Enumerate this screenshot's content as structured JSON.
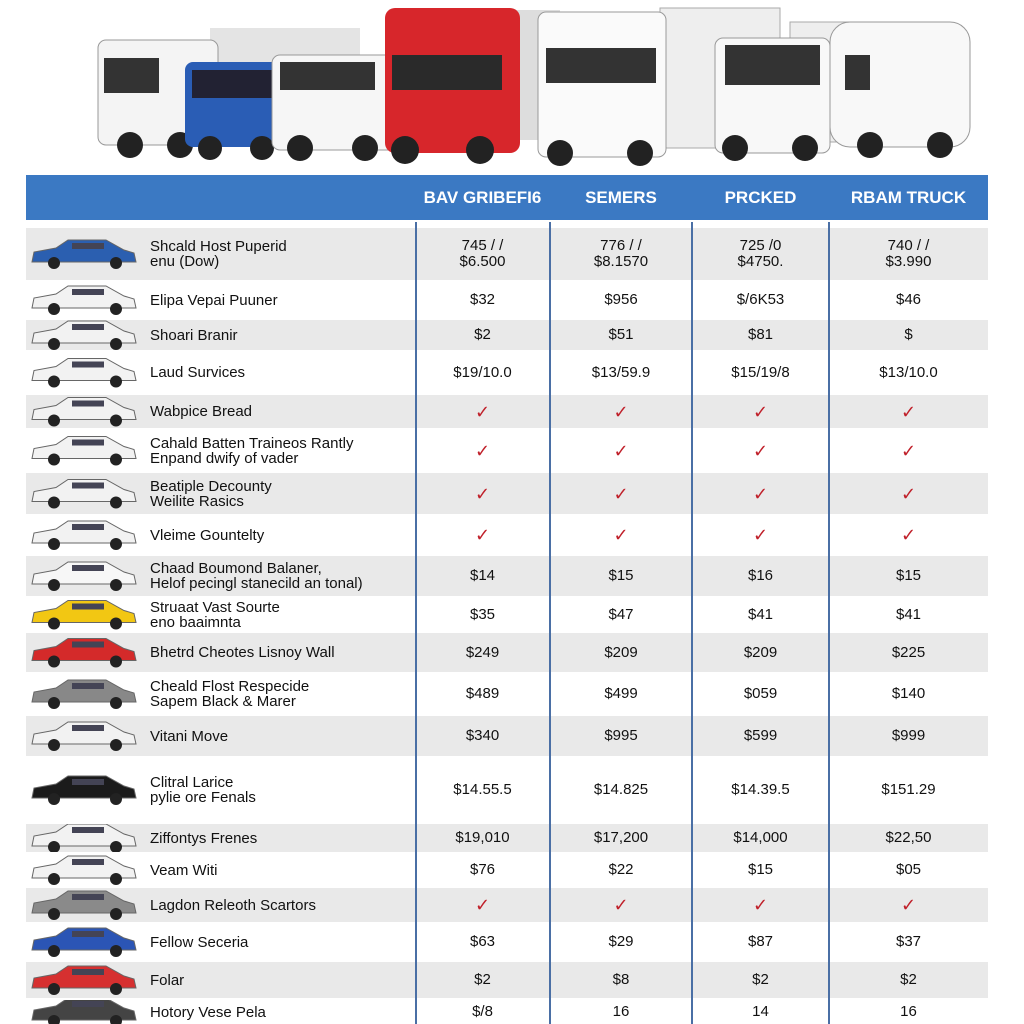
{
  "header": {
    "columns": [
      "BAV GRIBEFI6",
      "SEMERS",
      "PRCKED",
      "RBAM TRUCK"
    ]
  },
  "table": {
    "rows": [
      {
        "label": [
          "Shcald Host Puperid",
          "enu (Dow)"
        ],
        "cells": [
          [
            "745 / /",
            "$6.500"
          ],
          [
            "776 / /",
            "$8.1570"
          ],
          [
            "725 /0",
            "$4750."
          ],
          [
            "740 / /",
            "$3.990"
          ]
        ]
      },
      {
        "label": "Elipa Vepai Puuner",
        "cells": [
          "$32",
          "$956",
          "$/6K53",
          "$46"
        ]
      },
      {
        "label": "Shoari Branir",
        "cells": [
          "$2",
          "$51",
          "$81",
          "$"
        ]
      },
      {
        "label": "Laud Survices",
        "cells": [
          "$19/10.0",
          "$13/59.9",
          "$15/19/8",
          "$13/10.0"
        ]
      },
      {
        "label": "Wabpice Bread",
        "cells": [
          "✓",
          "✓",
          "✓",
          "✓"
        ]
      },
      {
        "label": [
          "Cahald Batten Traineos Rantly",
          "Enpand dwify of vader"
        ],
        "cells": [
          "✓",
          "✓",
          "✓",
          "✓"
        ]
      },
      {
        "label": [
          "Beatiple Decounty",
          "Weilite Rasics"
        ],
        "cells": [
          "✓",
          "✓",
          "✓",
          "✓"
        ]
      },
      {
        "label": "Vleime Gountelty",
        "cells": [
          "✓",
          "✓",
          "✓",
          "✓"
        ]
      },
      {
        "label": [
          "Chaad Boumond Balaner,",
          "Helof pecingl stanecild an tonal)"
        ],
        "cells": [
          "$14",
          "$15",
          "$16",
          "$15"
        ]
      },
      {
        "label": [
          "Struaat Vast Sourte",
          "eno baaimnta"
        ],
        "cells": [
          "$35",
          "$47",
          "$41",
          "$41"
        ]
      },
      {
        "label": "Bhetrd Cheotes Lisnoy Wall",
        "cells": [
          "$249",
          "$209",
          "$209",
          "$225"
        ]
      },
      {
        "label": [
          "Cheald Flost Respecide",
          "Sapem Black & Marer"
        ],
        "cells": [
          "$489",
          "$499",
          "$059",
          "$140"
        ]
      },
      {
        "label": "Vitani Move",
        "cells": [
          "$340",
          "$995",
          "$599",
          "$999"
        ]
      },
      {
        "label": [
          "Clitral Larice",
          "pylie ore Fenals"
        ],
        "cells": [
          "$14.55.5",
          "$14.825",
          "$14.39.5",
          "$151.29"
        ]
      },
      {
        "label": "Ziffontys Frenes",
        "cells": [
          "$19,010",
          "$17,200",
          "$14,000",
          "$22,50"
        ]
      },
      {
        "label": "Veam Witi",
        "cells": [
          "$76",
          "$22",
          "$15",
          "$05"
        ]
      },
      {
        "label": "Lagdon Releoth Scartors",
        "cells": [
          "✓",
          "✓",
          "✓",
          "✓"
        ]
      },
      {
        "label": "Fellow Seceria",
        "cells": [
          "$63",
          "$29",
          "$87",
          "$37"
        ]
      },
      {
        "label": "Folar",
        "cells": [
          "$2",
          "$8",
          "$2",
          "$2"
        ]
      },
      {
        "label": "Hotory Vese Pela",
        "cells": [
          "$/8",
          "16",
          "14",
          "16"
        ]
      }
    ]
  }
}
